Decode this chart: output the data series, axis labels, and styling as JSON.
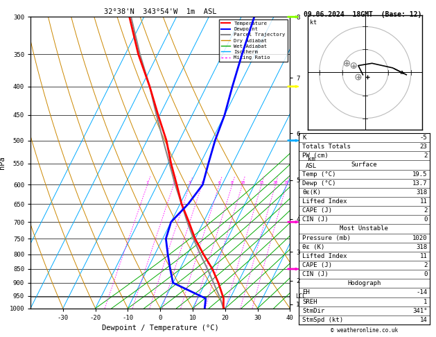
{
  "title_left": "32°38'N  343°54'W  1m  ASL",
  "title_right": "09.06.2024  18GMT  (Base: 12)",
  "xlabel": "Dewpoint / Temperature (°C)",
  "pressure_levels": [
    300,
    350,
    400,
    450,
    500,
    550,
    600,
    650,
    700,
    750,
    800,
    850,
    900,
    950,
    1000
  ],
  "temp_ticks": [
    -30,
    -20,
    -10,
    0,
    10,
    20,
    30,
    40
  ],
  "km_ticks": [
    1,
    2,
    3,
    4,
    5,
    6,
    7,
    8
  ],
  "km_pressures": [
    977,
    857,
    730,
    608,
    489,
    377,
    277,
    197
  ],
  "lcl_pressure": 952,
  "sounding_color": "#ff0000",
  "dewpoint_color": "#0000ff",
  "parcel_color": "#888888",
  "dry_adiabat_color": "#cc8800",
  "wet_adiabat_color": "#00aa00",
  "isotherm_color": "#00aaff",
  "mixing_ratio_color": "#ff00ff",
  "temperature_data": {
    "pressure": [
      1000,
      960,
      900,
      850,
      800,
      750,
      700,
      650,
      600,
      550,
      500,
      450,
      400,
      350,
      300
    ],
    "temp": [
      19.5,
      18.0,
      14.0,
      10.0,
      5.0,
      0.0,
      -4.5,
      -9.5,
      -14.0,
      -19.0,
      -24.0,
      -30.5,
      -37.5,
      -46.0,
      -54.5
    ]
  },
  "dewpoint_data": {
    "pressure": [
      1000,
      960,
      900,
      850,
      800,
      750,
      700,
      650,
      600,
      550,
      500,
      450,
      400,
      350,
      300
    ],
    "dewp": [
      13.7,
      12.5,
      0.0,
      -3.0,
      -6.0,
      -9.0,
      -10.0,
      -7.5,
      -6.0,
      -7.5,
      -9.0,
      -10.0,
      -12.0,
      -14.0,
      -16.0
    ]
  },
  "parcel_data": {
    "pressure": [
      1000,
      960,
      900,
      850,
      800,
      750,
      700,
      650,
      600,
      550,
      500,
      450,
      400,
      350,
      300
    ],
    "temp": [
      19.5,
      17.0,
      12.5,
      8.5,
      4.0,
      -0.5,
      -5.0,
      -9.5,
      -14.5,
      -19.5,
      -25.0,
      -31.0,
      -37.5,
      -45.5,
      -54.0
    ]
  },
  "mixing_ratio_values": [
    1,
    2,
    3,
    4,
    6,
    8,
    10,
    15,
    20,
    25
  ],
  "stats": {
    "K": -5,
    "Totals_Totals": 23,
    "PW_cm": 2,
    "Surface_Temp": "19.5",
    "Surface_Dewp": "13.7",
    "Surface_theta_e": "318",
    "Surface_LI": "11",
    "Surface_CAPE": "2",
    "Surface_CIN": "0",
    "MU_Pressure": "1020",
    "MU_theta_e": "318",
    "MU_LI": "11",
    "MU_CAPE": "2",
    "MU_CIN": "0",
    "Hodo_EH": "-14",
    "Hodo_SREH": "1",
    "Hodo_StmDir": "341°",
    "Hodo_StmSpd": "14"
  },
  "wind_colors": [
    "#ff00cc",
    "#ff00cc",
    "#00aaff",
    "#ffff00",
    "#88ff00"
  ],
  "wind_pressures": [
    850,
    700,
    500,
    400,
    300
  ],
  "hodo_u": [
    -1,
    -2,
    -3,
    3,
    12,
    18
  ],
  "hodo_v": [
    -1,
    1,
    3,
    4,
    2,
    -1
  ],
  "hodo_gray_u": [
    -8,
    -5,
    -3
  ],
  "hodo_gray_v": [
    4,
    3,
    -2
  ]
}
